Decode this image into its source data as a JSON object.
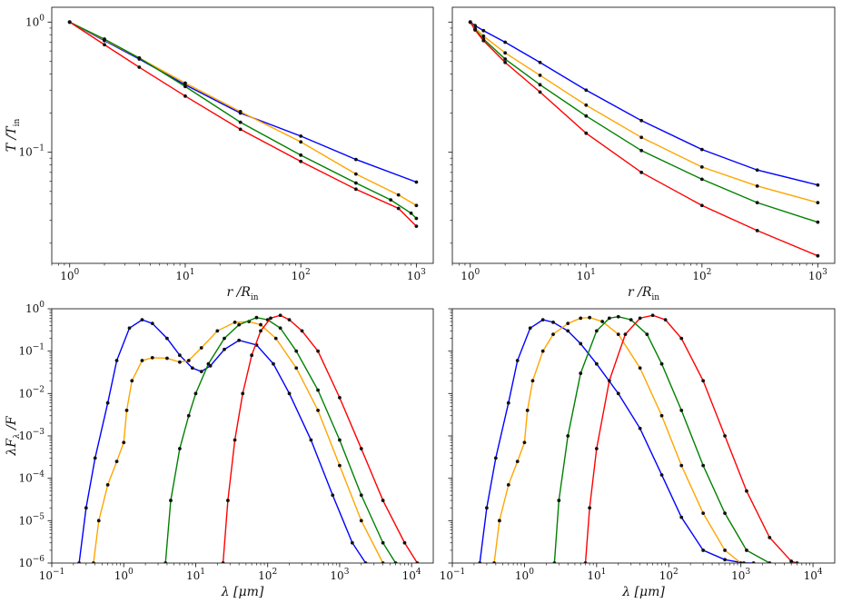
{
  "chart_data": [
    {
      "type": "line",
      "panel": "top-left",
      "xscale": "log",
      "yscale": "log",
      "xlim": [
        0.7,
        1400
      ],
      "ylim": [
        0.014,
        1.3
      ],
      "xlabel": "r /R",
      "xlabel_sub": "in",
      "ylabel": "T /T",
      "ylabel_sub": "in",
      "xticks": [
        {
          "v": 1,
          "base": "10",
          "exp": "0"
        },
        {
          "v": 10,
          "base": "10",
          "exp": "1"
        },
        {
          "v": 100,
          "base": "10",
          "exp": "2"
        },
        {
          "v": 1000,
          "base": "10",
          "exp": "3"
        }
      ],
      "yticks": [
        {
          "v": 1,
          "base": "10",
          "exp": "0"
        },
        {
          "v": 0.1,
          "base": "10",
          "exp": "−1"
        }
      ],
      "series": [
        {
          "color": "#0000ff",
          "x": [
            1,
            2,
            4,
            10,
            30,
            100,
            300,
            1000
          ],
          "y": [
            1,
            0.72,
            0.52,
            0.33,
            0.2,
            0.133,
            0.088,
            0.059
          ]
        },
        {
          "color": "#ffa500",
          "x": [
            1,
            2,
            4,
            10,
            30,
            100,
            300,
            700,
            1000
          ],
          "y": [
            1,
            0.73,
            0.53,
            0.34,
            0.205,
            0.12,
            0.068,
            0.047,
            0.039
          ]
        },
        {
          "color": "#008000",
          "x": [
            1,
            2,
            4,
            10,
            30,
            100,
            300,
            600,
            900,
            1000
          ],
          "y": [
            1,
            0.74,
            0.53,
            0.32,
            0.17,
            0.095,
            0.058,
            0.043,
            0.034,
            0.031
          ]
        },
        {
          "color": "#ff0000",
          "x": [
            1,
            2,
            4,
            10,
            30,
            100,
            300,
            700,
            1000
          ],
          "y": [
            1,
            0.67,
            0.45,
            0.27,
            0.15,
            0.085,
            0.052,
            0.037,
            0.027
          ]
        }
      ]
    },
    {
      "type": "line",
      "panel": "top-right",
      "xscale": "log",
      "yscale": "log",
      "xlim": [
        0.7,
        1400
      ],
      "ylim": [
        0.014,
        1.3
      ],
      "xlabel": "r /R",
      "xlabel_sub": "in",
      "ylabel": "",
      "ylabel_sub": "",
      "xticks": [
        {
          "v": 1,
          "base": "10",
          "exp": "0"
        },
        {
          "v": 10,
          "base": "10",
          "exp": "1"
        },
        {
          "v": 100,
          "base": "10",
          "exp": "2"
        },
        {
          "v": 1000,
          "base": "10",
          "exp": "3"
        }
      ],
      "yticks": [],
      "series": [
        {
          "color": "#0000ff",
          "x": [
            1,
            1.1,
            1.3,
            2,
            4,
            10,
            30,
            100,
            300,
            1000
          ],
          "y": [
            1,
            0.94,
            0.86,
            0.7,
            0.49,
            0.3,
            0.175,
            0.105,
            0.073,
            0.056
          ]
        },
        {
          "color": "#ffa500",
          "x": [
            1,
            1.1,
            1.3,
            2,
            4,
            10,
            30,
            100,
            300,
            1000
          ],
          "y": [
            1,
            0.9,
            0.78,
            0.58,
            0.39,
            0.23,
            0.13,
            0.077,
            0.055,
            0.041
          ]
        },
        {
          "color": "#008000",
          "x": [
            1,
            1.1,
            1.3,
            2,
            4,
            10,
            30,
            100,
            300,
            1000
          ],
          "y": [
            1,
            0.88,
            0.74,
            0.52,
            0.33,
            0.19,
            0.103,
            0.062,
            0.041,
            0.029
          ]
        },
        {
          "color": "#ff0000",
          "x": [
            1,
            1.1,
            1.3,
            2,
            4,
            10,
            30,
            100,
            300,
            1000
          ],
          "y": [
            1,
            0.87,
            0.72,
            0.49,
            0.29,
            0.14,
            0.07,
            0.039,
            0.025,
            0.016
          ]
        }
      ]
    },
    {
      "type": "line",
      "panel": "bottom-left",
      "xscale": "log",
      "yscale": "log",
      "xlim": [
        0.1,
        20000
      ],
      "ylim": [
        1e-06,
        1
      ],
      "xlabel": "λ [μm]",
      "xlabel_sub": "",
      "ylabel": "λF /F",
      "ylabel_sub": "λ",
      "xticks": [
        {
          "v": 0.1,
          "base": "10",
          "exp": "−1"
        },
        {
          "v": 1,
          "base": "10",
          "exp": "0"
        },
        {
          "v": 10,
          "base": "10",
          "exp": "1"
        },
        {
          "v": 100,
          "base": "10",
          "exp": "2"
        },
        {
          "v": 1000,
          "base": "10",
          "exp": "3"
        },
        {
          "v": 10000,
          "base": "10",
          "exp": "4"
        }
      ],
      "yticks": [
        {
          "v": 1,
          "base": "10",
          "exp": "0"
        },
        {
          "v": 0.1,
          "base": "10",
          "exp": "−1"
        },
        {
          "v": 0.01,
          "base": "10",
          "exp": "−2"
        },
        {
          "v": 0.001,
          "base": "10",
          "exp": "−3"
        },
        {
          "v": 0.0001,
          "base": "10",
          "exp": "−4"
        },
        {
          "v": 1e-05,
          "base": "10",
          "exp": "−5"
        },
        {
          "v": 1e-06,
          "base": "10",
          "exp": "−6"
        }
      ],
      "series": [
        {
          "color": "#0000ff",
          "x": [
            0.24,
            0.3,
            0.4,
            0.6,
            0.8,
            1.2,
            1.8,
            2.5,
            4,
            6,
            9,
            12,
            16,
            25,
            40,
            70,
            120,
            200,
            400,
            800,
            1500,
            2300
          ],
          "y": [
            1e-06,
            2e-05,
            0.0003,
            0.006,
            0.06,
            0.35,
            0.55,
            0.45,
            0.2,
            0.08,
            0.04,
            0.033,
            0.045,
            0.11,
            0.18,
            0.14,
            0.05,
            0.01,
            0.0008,
            4e-05,
            3e-06,
            1e-06
          ]
        },
        {
          "color": "#ffa500",
          "x": [
            0.38,
            0.45,
            0.6,
            0.8,
            1.0,
            1.1,
            1.3,
            1.8,
            2.5,
            4,
            6,
            8,
            12,
            20,
            35,
            55,
            80,
            130,
            250,
            500,
            1000,
            2000,
            4000
          ],
          "y": [
            1e-06,
            1e-05,
            7e-05,
            0.00025,
            0.0007,
            0.004,
            0.02,
            0.06,
            0.07,
            0.068,
            0.055,
            0.06,
            0.12,
            0.3,
            0.48,
            0.5,
            0.42,
            0.2,
            0.04,
            0.004,
            0.0002,
            1e-05,
            1e-06
          ]
        },
        {
          "color": "#008000",
          "x": [
            3.8,
            4.5,
            6,
            8,
            10,
            15,
            25,
            40,
            70,
            100,
            150,
            250,
            500,
            1000,
            2000,
            4000,
            6000
          ],
          "y": [
            1e-06,
            3e-05,
            0.0005,
            0.003,
            0.01,
            0.05,
            0.2,
            0.42,
            0.62,
            0.55,
            0.35,
            0.1,
            0.012,
            0.0008,
            4e-05,
            3e-06,
            1e-06
          ]
        },
        {
          "color": "#ff0000",
          "x": [
            24,
            28,
            35,
            45,
            60,
            80,
            110,
            150,
            200,
            300,
            500,
            1000,
            2000,
            4000,
            8000,
            12000
          ],
          "y": [
            1e-06,
            3e-05,
            0.0008,
            0.01,
            0.08,
            0.3,
            0.6,
            0.7,
            0.55,
            0.3,
            0.1,
            0.008,
            0.0005,
            3e-05,
            3e-06,
            1e-06
          ]
        }
      ]
    },
    {
      "type": "line",
      "panel": "bottom-right",
      "xscale": "log",
      "yscale": "log",
      "xlim": [
        0.1,
        20000
      ],
      "ylim": [
        1e-06,
        1
      ],
      "xlabel": "λ [μm]",
      "xlabel_sub": "",
      "ylabel": "",
      "ylabel_sub": "",
      "xticks": [
        {
          "v": 0.1,
          "base": "10",
          "exp": "−1"
        },
        {
          "v": 1,
          "base": "10",
          "exp": "0"
        },
        {
          "v": 10,
          "base": "10",
          "exp": "1"
        },
        {
          "v": 100,
          "base": "10",
          "exp": "2"
        },
        {
          "v": 1000,
          "base": "10",
          "exp": "3"
        },
        {
          "v": 10000,
          "base": "10",
          "exp": "4"
        }
      ],
      "yticks": [],
      "series": [
        {
          "color": "#0000ff",
          "x": [
            0.24,
            0.3,
            0.4,
            0.6,
            0.8,
            1.2,
            1.8,
            2.5,
            4,
            6,
            10,
            20,
            40,
            80,
            150,
            300,
            600,
            1100,
            1500
          ],
          "y": [
            1e-06,
            2e-05,
            0.0003,
            0.006,
            0.06,
            0.35,
            0.55,
            0.48,
            0.3,
            0.15,
            0.05,
            0.01,
            0.0015,
            0.00012,
            1.2e-05,
            2e-06,
            1.2e-06,
            1e-06,
            1e-06
          ]
        },
        {
          "color": "#ffa500",
          "x": [
            0.38,
            0.45,
            0.6,
            0.8,
            1.0,
            1.1,
            1.3,
            1.8,
            2.5,
            4,
            6,
            8,
            12,
            20,
            40,
            80,
            150,
            300,
            600,
            1000
          ],
          "y": [
            1e-06,
            1e-05,
            7e-05,
            0.00025,
            0.0007,
            0.004,
            0.02,
            0.1,
            0.25,
            0.45,
            0.6,
            0.62,
            0.5,
            0.25,
            0.04,
            0.003,
            0.0002,
            1.5e-05,
            2e-06,
            1e-06
          ]
        },
        {
          "color": "#008000",
          "x": [
            2.6,
            3,
            4,
            6,
            10,
            15,
            20,
            30,
            50,
            80,
            150,
            300,
            600,
            1200,
            2500
          ],
          "y": [
            1e-06,
            3e-05,
            0.001,
            0.03,
            0.3,
            0.6,
            0.65,
            0.55,
            0.25,
            0.05,
            0.004,
            0.0002,
            1.5e-05,
            2e-06,
            1e-06
          ]
        },
        {
          "color": "#ff0000",
          "x": [
            7,
            8,
            10,
            15,
            25,
            40,
            60,
            90,
            150,
            300,
            600,
            1200,
            2500,
            5000,
            6000
          ],
          "y": [
            1e-06,
            2e-05,
            0.0005,
            0.02,
            0.25,
            0.6,
            0.7,
            0.55,
            0.2,
            0.02,
            0.001,
            5e-05,
            4e-06,
            1.1e-06,
            1e-06
          ]
        }
      ]
    }
  ]
}
